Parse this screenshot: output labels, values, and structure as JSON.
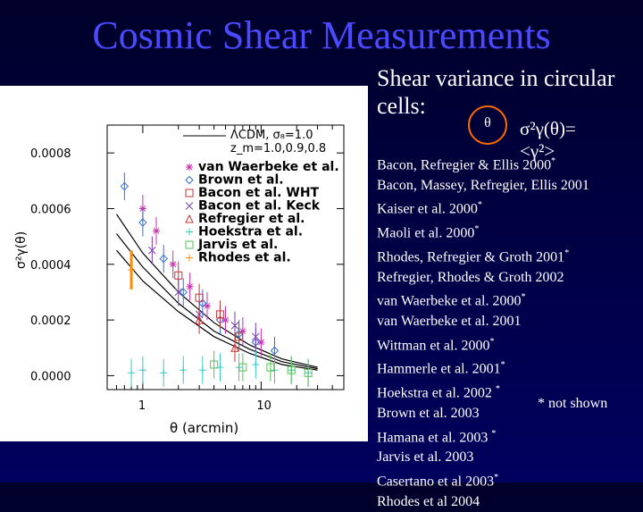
{
  "slide": {
    "title": "Cosmic Shear Measurements",
    "caption_line1": "Shear variance in circular",
    "caption_line2": "cells:",
    "theta_symbol": "θ",
    "formula": "σ²γ(θ)=<γ²>",
    "not_shown_note": "* not shown",
    "references": [
      {
        "text": "Bacon, Refregier & Ellis 2000",
        "star": "*"
      },
      {
        "text": "Bacon, Massey, Refregier, Ellis 2001",
        "star": ""
      },
      {
        "text": "Kaiser et al. 2000",
        "star": "*"
      },
      {
        "text": "Maoli et al. 2000",
        "star": "*"
      },
      {
        "text": "Rhodes, Refregier & Groth 2001",
        "star": "*"
      },
      {
        "text": "Refregier, Rhodes & Groth 2002",
        "star": ""
      },
      {
        "text": "van Waerbeke et al. 2000",
        "star": "*"
      },
      {
        "text": "van Waerbeke et al. 2001",
        "star": ""
      },
      {
        "text": "Wittman et al. 2000",
        "star": "*"
      },
      {
        "text": "Hammerle et al. 2001",
        "star": "*"
      },
      {
        "text": "Hoekstra et al. 2002 ",
        "star": "*"
      },
      {
        "text": "Brown et al. 2003",
        "star": ""
      },
      {
        "text": "Hamana et al. 2003 ",
        "star": "*"
      },
      {
        "text": "Jarvis et al. 2003",
        "star": ""
      },
      {
        "text": "Casertano et al 2003",
        "star": "*"
      },
      {
        "text": "Rhodes et al 2004",
        "star": ""
      }
    ]
  },
  "chart_data": {
    "type": "scatter",
    "xlabel": "θ (arcmin)",
    "ylabel": "σ²γ(θ)",
    "x_scale": "log",
    "xlim": [
      0.5,
      50
    ],
    "ylim": [
      -5e-05,
      0.0009
    ],
    "x_ticks": [
      {
        "value": 1,
        "label": "1"
      },
      {
        "value": 10,
        "label": "10"
      }
    ],
    "y_ticks": [
      {
        "value": 0,
        "label": "0.0000"
      },
      {
        "value": 0.0002,
        "label": "0.0002"
      },
      {
        "value": 0.0004,
        "label": "0.0004"
      },
      {
        "value": 0.0006,
        "label": "0.0006"
      },
      {
        "value": 0.0008,
        "label": "0.0008"
      }
    ],
    "model_legend": {
      "line1": "ΛCDM, σ₈=1.0",
      "line2": "z_m=1.0,0.9,0.8"
    },
    "model_curves": [
      {
        "x": [
          0.6,
          1,
          2,
          4,
          8,
          15,
          30
        ],
        "y": [
          0.00058,
          0.00044,
          0.0003,
          0.00019,
          0.00011,
          6e-05,
          3e-05
        ]
      },
      {
        "x": [
          0.6,
          1,
          2,
          4,
          8,
          15,
          30
        ],
        "y": [
          0.00051,
          0.00039,
          0.00026,
          0.00016,
          9.5e-05,
          5e-05,
          2.5e-05
        ]
      },
      {
        "x": [
          0.6,
          1,
          2,
          4,
          8,
          15,
          30
        ],
        "y": [
          0.00045,
          0.00034,
          0.00023,
          0.00014,
          8e-05,
          4e-05,
          2e-05
        ]
      }
    ],
    "series": [
      {
        "name": "van Waerbeke et al.",
        "color": "#cc2fb0",
        "marker": "asterisk",
        "points": [
          [
            1.0,
            0.0006
          ],
          [
            1.3,
            0.00052
          ],
          [
            1.8,
            0.0004
          ],
          [
            2.5,
            0.00032
          ],
          [
            3.5,
            0.00025
          ],
          [
            5,
            0.0002
          ],
          [
            7,
            0.00016
          ],
          [
            10,
            0.00012
          ]
        ]
      },
      {
        "name": "Brown et al.",
        "color": "#2f6fd6",
        "marker": "diamond",
        "points": [
          [
            0.7,
            0.00068
          ],
          [
            1.0,
            0.00055
          ],
          [
            1.5,
            0.00042
          ],
          [
            2.2,
            0.0003
          ],
          [
            3.2,
            0.00026
          ],
          [
            4.5,
            0.0002
          ],
          [
            6.5,
            0.00015
          ],
          [
            9,
            0.00012
          ],
          [
            13,
            9e-05
          ]
        ]
      },
      {
        "name": "Bacon et al. WHT",
        "color": "#cc3333",
        "marker": "square",
        "points": [
          [
            2.0,
            0.00036
          ],
          [
            3.0,
            0.00028
          ],
          [
            4.5,
            0.00022
          ],
          [
            6.5,
            0.00014
          ]
        ]
      },
      {
        "name": "Bacon et al. Keck",
        "color": "#7a3fb0",
        "marker": "x",
        "points": [
          [
            1.2,
            0.00045
          ],
          [
            2.0,
            0.0003
          ],
          [
            3.0,
            0.00022
          ],
          [
            6,
            0.00018
          ],
          [
            9,
            0.00014
          ]
        ]
      },
      {
        "name": "Refregier et al.",
        "color": "#d0302f",
        "marker": "triangle",
        "points": [
          [
            3.0,
            0.0002
          ],
          [
            6,
            0.0001
          ]
        ]
      },
      {
        "name": "Hoekstra et al.",
        "color": "#33c8c8",
        "marker": "plus",
        "points": [
          [
            0.8,
            1e-05
          ],
          [
            1.0,
            2e-05
          ],
          [
            1.5,
            1e-05
          ],
          [
            2.2,
            2e-05
          ],
          [
            3.2,
            2e-05
          ],
          [
            4.5,
            3e-05
          ],
          [
            6.5,
            3e-05
          ],
          [
            9,
            4e-05
          ],
          [
            13,
            2e-05
          ],
          [
            18,
            2e-05
          ],
          [
            25,
            1e-05
          ]
        ]
      },
      {
        "name": "Jarvis et al.",
        "color": "#56c256",
        "marker": "square",
        "points": [
          [
            4,
            4e-05
          ],
          [
            7,
            3e-05
          ],
          [
            12,
            3e-05
          ],
          [
            18,
            2e-05
          ],
          [
            25,
            1e-05
          ]
        ]
      },
      {
        "name": "Rhodes et al.",
        "color": "#ff8c00",
        "marker": "plus",
        "points": [
          [
            0.8,
            0.00038
          ]
        ],
        "err": [
          7e-05
        ]
      }
    ]
  }
}
